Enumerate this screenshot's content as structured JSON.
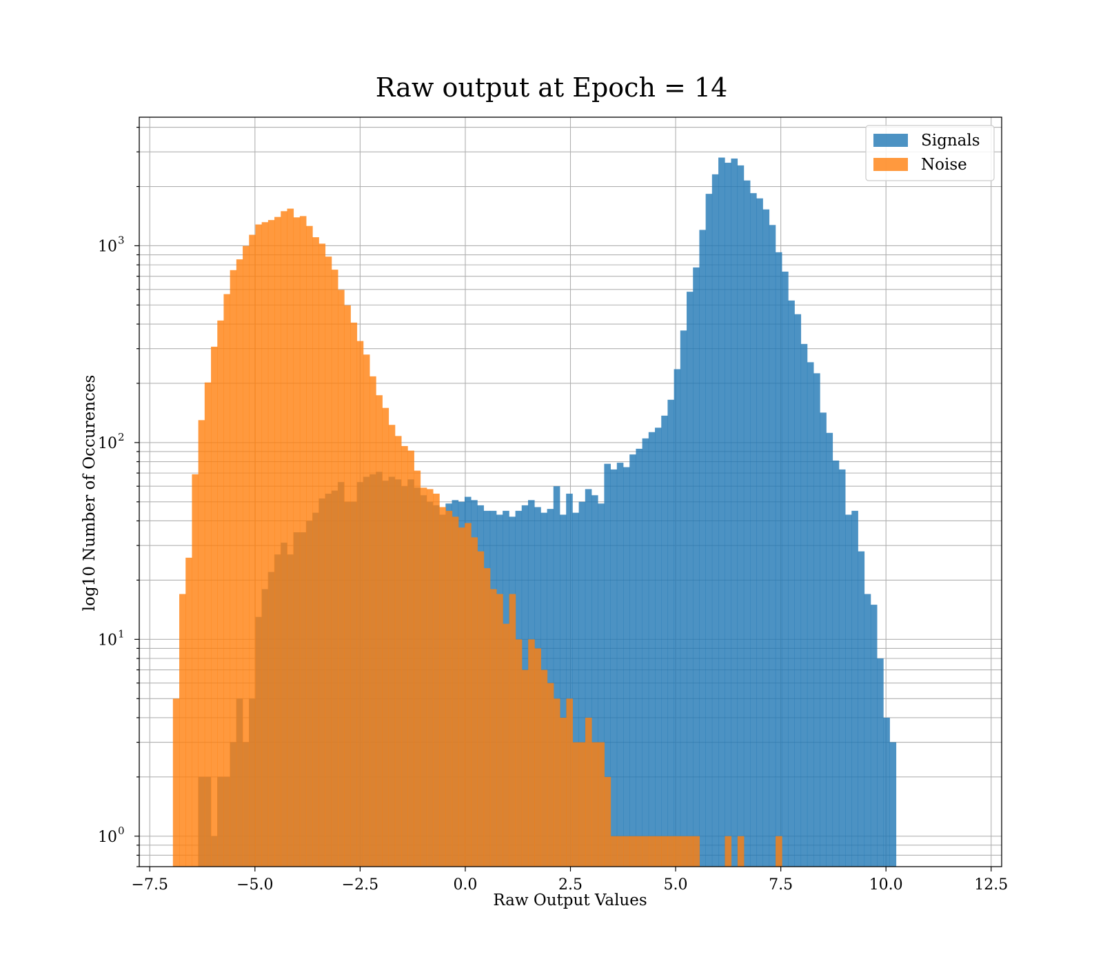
{
  "chart_data": {
    "type": "bar",
    "title": "Raw output at Epoch = 14",
    "xlabel": "Raw Output Values",
    "ylabel": "log10 Number of Occurences",
    "yscale": "log",
    "xlim": [
      -7.75,
      12.75
    ],
    "ylim": [
      0.7,
      4500
    ],
    "grid": true,
    "xticks": [
      -7.5,
      -5.0,
      -2.5,
      0.0,
      2.5,
      5.0,
      7.5,
      10.0,
      12.5
    ],
    "xtick_labels": [
      "−7.5",
      "−5.0",
      "−2.5",
      "0.0",
      "2.5",
      "5.0",
      "7.5",
      "10.0",
      "12.5"
    ],
    "yticks": [
      1,
      10,
      100,
      1000
    ],
    "ytick_labels": [
      {
        "base": "10",
        "exp": "0"
      },
      {
        "base": "10",
        "exp": "1"
      },
      {
        "base": "10",
        "exp": "2"
      },
      {
        "base": "10",
        "exp": "3"
      }
    ],
    "legend": {
      "position": "top-right"
    },
    "series": [
      {
        "name": "Signals",
        "color": "#1f77b4",
        "opacity": 0.8,
        "x_start": -6.35,
        "bin_width": 0.1508,
        "values": [
          2,
          2,
          1,
          2,
          2,
          3,
          5,
          3,
          5,
          13,
          18,
          22,
          27,
          31,
          27,
          35,
          35,
          40,
          44,
          52,
          55,
          57,
          63,
          50,
          50,
          63,
          67,
          69,
          71,
          64,
          67,
          65,
          60,
          65,
          59,
          54,
          50,
          48,
          43,
          49,
          51,
          50,
          53,
          51,
          48,
          45,
          45,
          43,
          45,
          42,
          45,
          48,
          51,
          47,
          44,
          46,
          60,
          43,
          55,
          44,
          50,
          58,
          54,
          49,
          78,
          73,
          79,
          75,
          87,
          93,
          105,
          113,
          119,
          137,
          165,
          236,
          371,
          584,
          776,
          1204,
          1836,
          2307,
          2806,
          2642,
          2775,
          2561,
          2147,
          1851,
          1741,
          1530,
          1275,
          927,
          739,
          527,
          449,
          317,
          256,
          225,
          142,
          112,
          81,
          73,
          43,
          45,
          28,
          17,
          15,
          8,
          4,
          3
        ]
      },
      {
        "name": "Noise",
        "color": "#ff7f0e",
        "opacity": 0.8,
        "x_start": -6.95,
        "bin_width": 0.1508,
        "values": [
          5,
          17,
          26,
          69,
          130,
          202,
          307,
          417,
          568,
          752,
          853,
          998,
          1137,
          1283,
          1318,
          1351,
          1401,
          1499,
          1544,
          1394,
          1415,
          1261,
          1105,
          1025,
          881,
          756,
          597,
          498,
          407,
          328,
          280,
          217,
          174,
          150,
          123,
          108,
          96,
          91,
          72,
          59,
          58,
          55,
          47,
          45,
          42,
          37,
          39,
          33,
          28,
          23,
          18,
          17,
          12,
          17,
          10,
          7,
          10,
          9,
          7,
          6,
          5,
          4,
          5,
          3,
          3,
          4,
          3,
          3,
          2,
          1,
          1,
          1,
          1,
          1,
          1,
          1,
          1,
          1,
          1,
          1,
          1,
          1,
          1,
          0,
          0,
          0,
          0,
          1,
          0,
          1,
          0,
          0,
          0,
          0,
          0,
          1
        ]
      }
    ]
  }
}
